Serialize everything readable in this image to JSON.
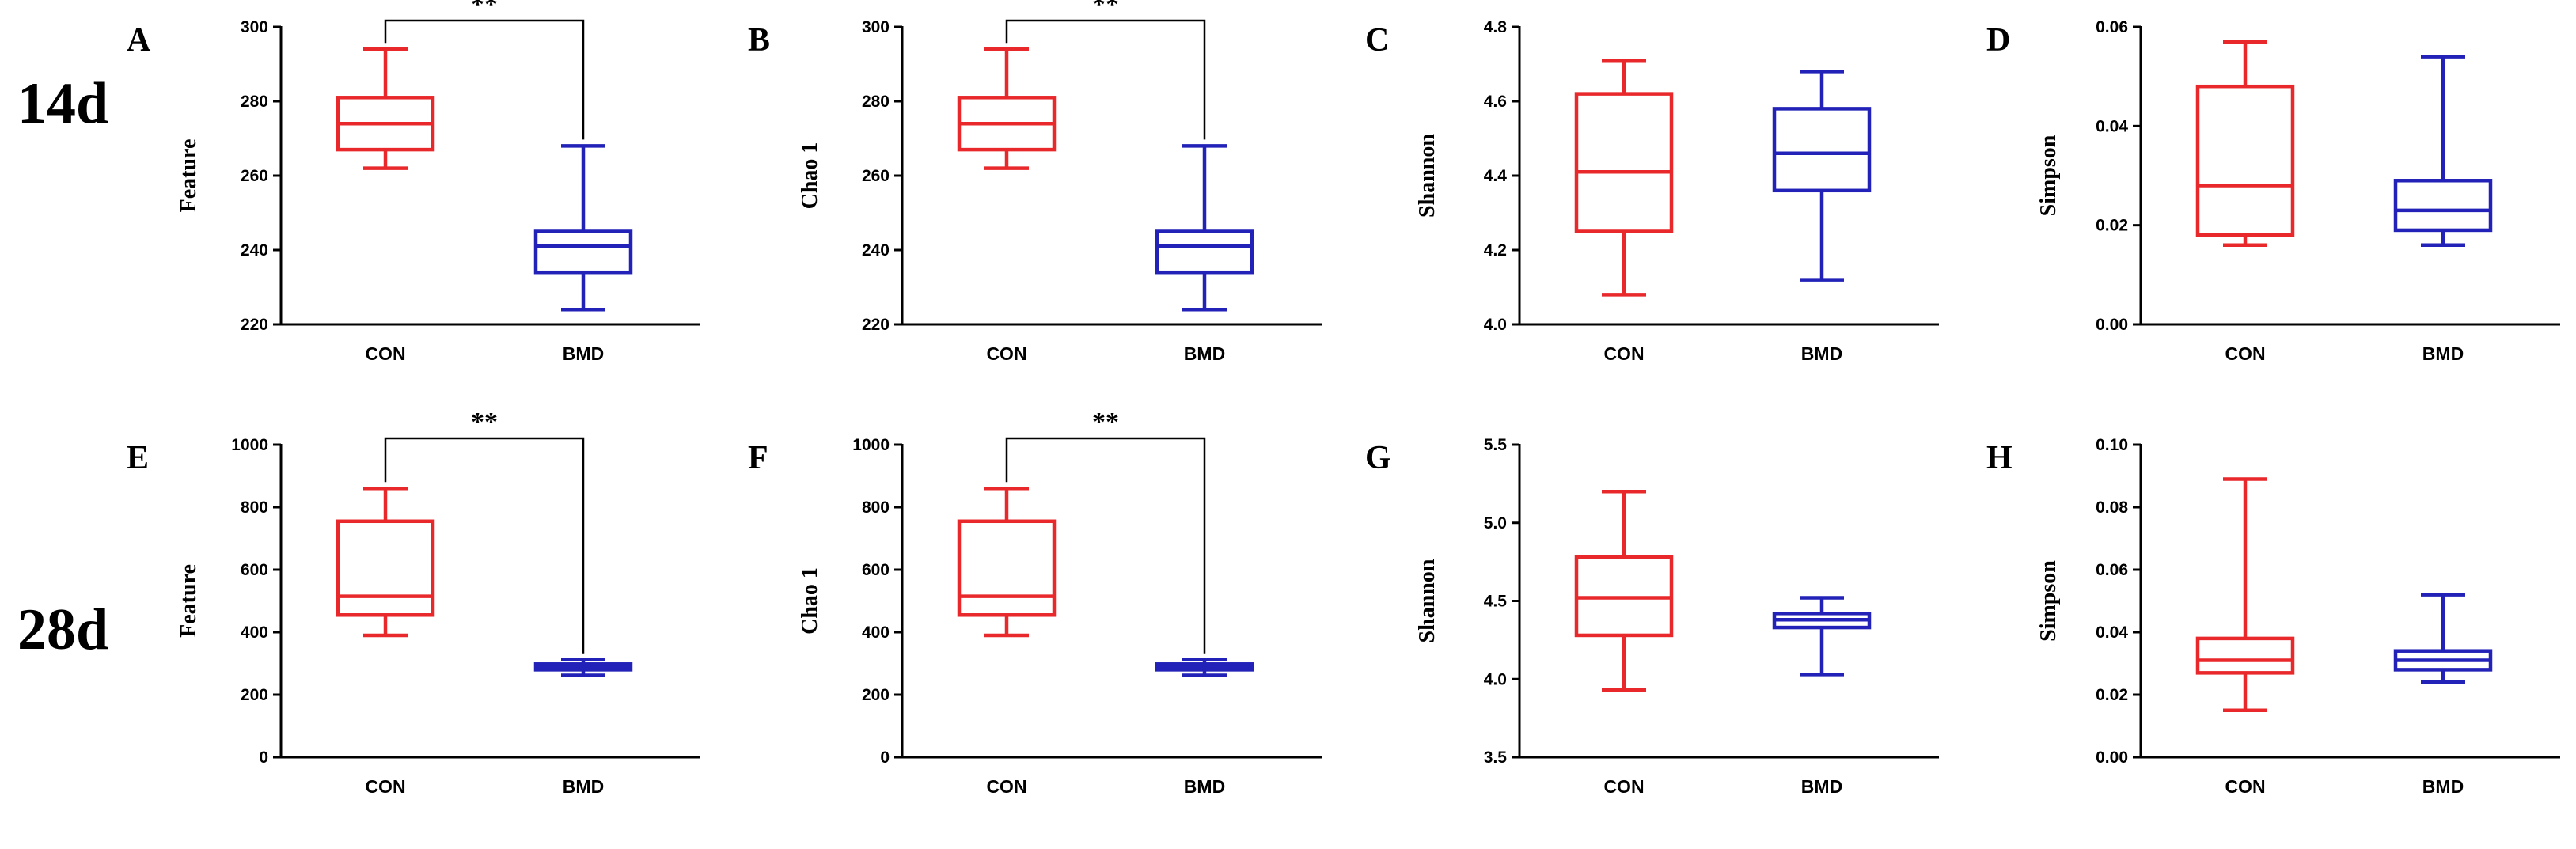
{
  "row_labels": [
    "14d",
    "28d"
  ],
  "colors": {
    "CON": "#e8282b",
    "BMD": "#2222b8",
    "axis": "#000000"
  },
  "chart_data": [
    {
      "id": "A",
      "type": "box",
      "row": 0,
      "col": 0,
      "ylabel": "Feature",
      "categories": [
        "CON",
        "BMD"
      ],
      "ylim": [
        220,
        300
      ],
      "yticks": [
        220,
        240,
        260,
        280,
        300
      ],
      "tick_decimals": 0,
      "boxes": [
        {
          "name": "CON",
          "min": 262,
          "q1": 267,
          "median": 274,
          "q3": 281,
          "max": 294
        },
        {
          "name": "BMD",
          "min": 224,
          "q1": 234,
          "median": 241,
          "q3": 245,
          "max": 268
        }
      ],
      "significance": "**"
    },
    {
      "id": "B",
      "type": "box",
      "row": 0,
      "col": 1,
      "ylabel": "Chao 1",
      "categories": [
        "CON",
        "BMD"
      ],
      "ylim": [
        220,
        300
      ],
      "yticks": [
        220,
        240,
        260,
        280,
        300
      ],
      "tick_decimals": 0,
      "boxes": [
        {
          "name": "CON",
          "min": 262,
          "q1": 267,
          "median": 274,
          "q3": 281,
          "max": 294
        },
        {
          "name": "BMD",
          "min": 224,
          "q1": 234,
          "median": 241,
          "q3": 245,
          "max": 268
        }
      ],
      "significance": "**"
    },
    {
      "id": "C",
      "type": "box",
      "row": 0,
      "col": 2,
      "ylabel": "Shannon",
      "categories": [
        "CON",
        "BMD"
      ],
      "ylim": [
        4.0,
        4.8
      ],
      "yticks": [
        4.0,
        4.2,
        4.4,
        4.6,
        4.8
      ],
      "tick_decimals": 1,
      "boxes": [
        {
          "name": "CON",
          "min": 4.08,
          "q1": 4.25,
          "median": 4.41,
          "q3": 4.62,
          "max": 4.71
        },
        {
          "name": "BMD",
          "min": 4.12,
          "q1": 4.36,
          "median": 4.46,
          "q3": 4.58,
          "max": 4.68
        }
      ],
      "significance": ""
    },
    {
      "id": "D",
      "type": "box",
      "row": 0,
      "col": 3,
      "ylabel": "Simpson",
      "categories": [
        "CON",
        "BMD"
      ],
      "ylim": [
        0,
        0.06
      ],
      "yticks": [
        0,
        0.02,
        0.04,
        0.06
      ],
      "tick_decimals": 2,
      "boxes": [
        {
          "name": "CON",
          "min": 0.016,
          "q1": 0.018,
          "median": 0.028,
          "q3": 0.048,
          "max": 0.057
        },
        {
          "name": "BMD",
          "min": 0.016,
          "q1": 0.019,
          "median": 0.023,
          "q3": 0.029,
          "max": 0.054
        }
      ],
      "significance": ""
    },
    {
      "id": "E",
      "type": "box",
      "row": 1,
      "col": 0,
      "ylabel": "Feature",
      "categories": [
        "CON",
        "BMD"
      ],
      "ylim": [
        0,
        1000
      ],
      "yticks": [
        0,
        200,
        400,
        600,
        800,
        1000
      ],
      "tick_decimals": 0,
      "boxes": [
        {
          "name": "CON",
          "min": 390,
          "q1": 455,
          "median": 515,
          "q3": 755,
          "max": 860
        },
        {
          "name": "BMD",
          "min": 262,
          "q1": 280,
          "median": 290,
          "q3": 298,
          "max": 312
        }
      ],
      "significance": "**"
    },
    {
      "id": "F",
      "type": "box",
      "row": 1,
      "col": 1,
      "ylabel": "Chao 1",
      "categories": [
        "CON",
        "BMD"
      ],
      "ylim": [
        0,
        1000
      ],
      "yticks": [
        0,
        200,
        400,
        600,
        800,
        1000
      ],
      "tick_decimals": 0,
      "boxes": [
        {
          "name": "CON",
          "min": 390,
          "q1": 455,
          "median": 515,
          "q3": 755,
          "max": 860
        },
        {
          "name": "BMD",
          "min": 262,
          "q1": 280,
          "median": 290,
          "q3": 298,
          "max": 312
        }
      ],
      "significance": "**"
    },
    {
      "id": "G",
      "type": "box",
      "row": 1,
      "col": 2,
      "ylabel": "Shannon",
      "categories": [
        "CON",
        "BMD"
      ],
      "ylim": [
        3.5,
        5.5
      ],
      "yticks": [
        3.5,
        4.0,
        4.5,
        5.0,
        5.5
      ],
      "tick_decimals": 1,
      "boxes": [
        {
          "name": "CON",
          "min": 3.93,
          "q1": 4.28,
          "median": 4.52,
          "q3": 4.78,
          "max": 5.2
        },
        {
          "name": "BMD",
          "min": 4.03,
          "q1": 4.33,
          "median": 4.38,
          "q3": 4.42,
          "max": 4.52
        }
      ],
      "significance": ""
    },
    {
      "id": "H",
      "type": "box",
      "row": 1,
      "col": 3,
      "ylabel": "Simpson",
      "categories": [
        "CON",
        "BMD"
      ],
      "ylim": [
        0,
        0.1
      ],
      "yticks": [
        0,
        0.02,
        0.04,
        0.06,
        0.08,
        0.1
      ],
      "tick_decimals": 2,
      "boxes": [
        {
          "name": "CON",
          "min": 0.015,
          "q1": 0.027,
          "median": 0.031,
          "q3": 0.038,
          "max": 0.089
        },
        {
          "name": "BMD",
          "min": 0.024,
          "q1": 0.028,
          "median": 0.031,
          "q3": 0.034,
          "max": 0.052
        }
      ],
      "significance": ""
    }
  ]
}
